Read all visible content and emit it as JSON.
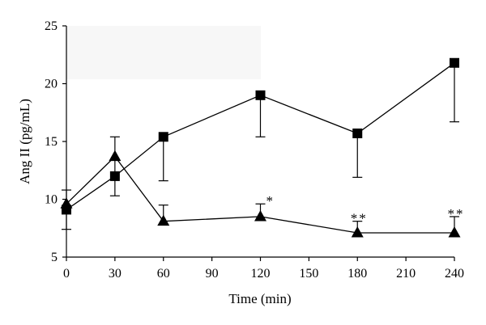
{
  "chart_data": {
    "type": "line",
    "title": "",
    "xlabel": "Time (min)",
    "ylabel": "Ang II (pg/mL)",
    "xlim": [
      0,
      240
    ],
    "ylim": [
      5,
      25
    ],
    "xticks": [
      0,
      30,
      60,
      90,
      120,
      150,
      180,
      210,
      240
    ],
    "yticks": [
      5,
      10,
      15,
      20,
      25
    ],
    "grid": false,
    "legend": "none",
    "series": [
      {
        "marker": "square",
        "points": [
          {
            "x": 0,
            "y": 9.1,
            "err_low": 7.4,
            "err_high": 10.8
          },
          {
            "x": 30,
            "y": 12.0,
            "err_low": 10.3,
            "err_high": 15.4
          },
          {
            "x": 60,
            "y": 15.4,
            "err_low": 11.6,
            "err_high": 15.4
          },
          {
            "x": 120,
            "y": 19.0,
            "err_low": 15.4,
            "err_high": 19.0
          },
          {
            "x": 180,
            "y": 15.7,
            "err_low": 11.9,
            "err_high": 15.7
          },
          {
            "x": 240,
            "y": 21.8,
            "err_low": 16.7,
            "err_high": 21.8
          }
        ]
      },
      {
        "marker": "triangle",
        "points": [
          {
            "x": 0,
            "y": 9.6,
            "err_low": 9.6,
            "err_high": 9.6
          },
          {
            "x": 30,
            "y": 13.7,
            "err_low": 13.7,
            "err_high": 13.7
          },
          {
            "x": 60,
            "y": 8.1,
            "err_low": 8.1,
            "err_high": 9.5
          },
          {
            "x": 120,
            "y": 8.5,
            "err_low": 8.5,
            "err_high": 9.6
          },
          {
            "x": 180,
            "y": 7.1,
            "err_low": 7.1,
            "err_high": 8.1
          },
          {
            "x": 240,
            "y": 7.1,
            "err_low": 7.1,
            "err_high": 8.5
          }
        ]
      }
    ],
    "annotations": [
      {
        "x": 120,
        "text": "*"
      },
      {
        "x": 180,
        "text": "**"
      },
      {
        "x": 240,
        "text": "**"
      }
    ]
  }
}
